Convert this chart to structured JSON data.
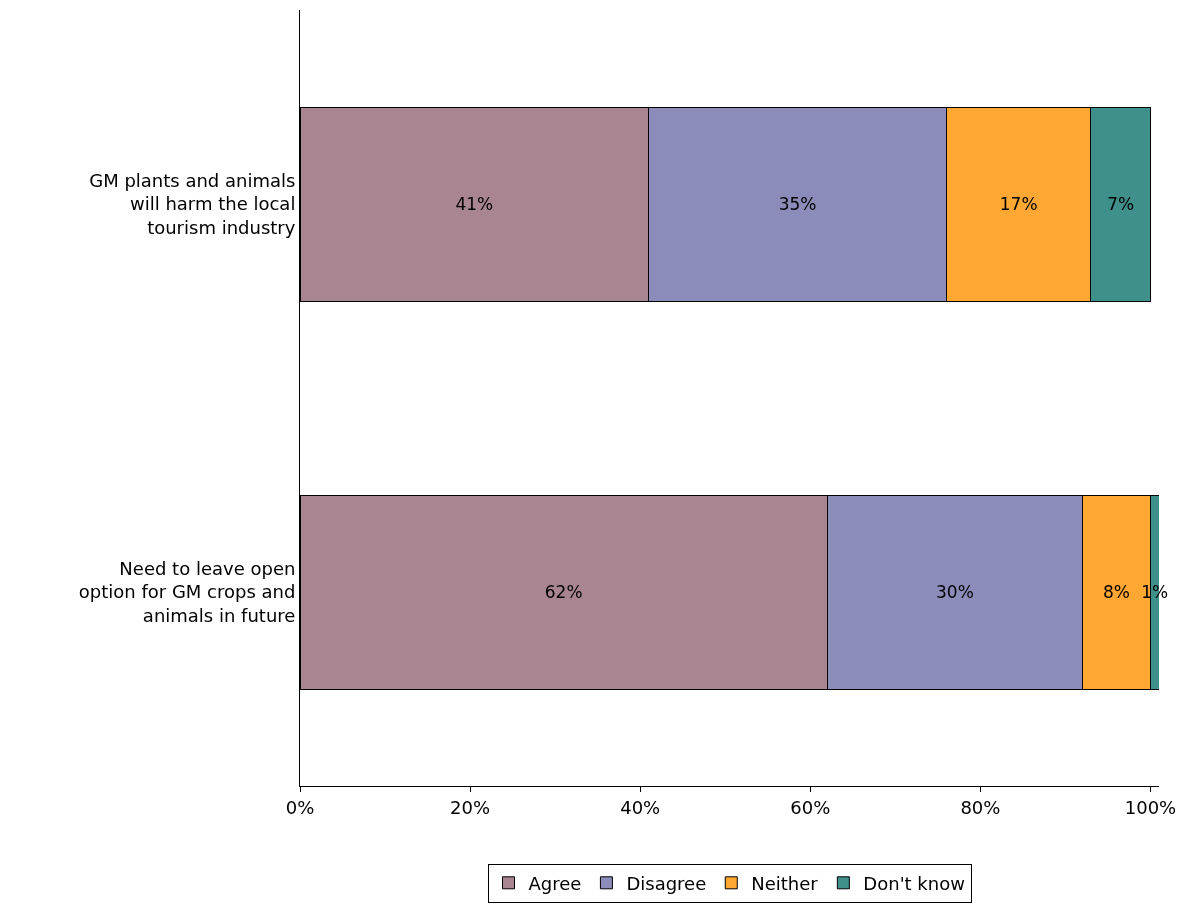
{
  "chart_data": {
    "type": "bar",
    "orientation": "horizontal",
    "stacked": true,
    "data_labels": true,
    "categories": [
      "GM plants and animals will harm the local tourism industry",
      "Need to leave open option for GM crops and animals in future"
    ],
    "series": [
      {
        "name": "Agree",
        "color": "#a98591",
        "values": [
          41,
          62
        ],
        "value_labels": [
          "41%",
          "62%"
        ]
      },
      {
        "name": "Disagree",
        "color": "#8c8cba",
        "values": [
          35,
          30
        ],
        "value_labels": [
          "35%",
          "30%"
        ]
      },
      {
        "name": "Neither",
        "color": "#ffa733",
        "values": [
          17,
          8
        ],
        "value_labels": [
          "17%",
          "8%"
        ]
      },
      {
        "name": "Don't know",
        "color": "#3f8f8b",
        "values": [
          7,
          1
        ],
        "value_labels": [
          "7%",
          "1%"
        ]
      }
    ],
    "xlim": [
      0,
      101
    ],
    "xticks": [
      {
        "value": 0,
        "label": "0%"
      },
      {
        "value": 20,
        "label": "20%"
      },
      {
        "value": 40,
        "label": "40%"
      },
      {
        "value": 60,
        "label": "60%"
      },
      {
        "value": 80,
        "label": "80%"
      },
      {
        "value": 100,
        "label": "100%"
      }
    ],
    "legend": "bottom"
  }
}
